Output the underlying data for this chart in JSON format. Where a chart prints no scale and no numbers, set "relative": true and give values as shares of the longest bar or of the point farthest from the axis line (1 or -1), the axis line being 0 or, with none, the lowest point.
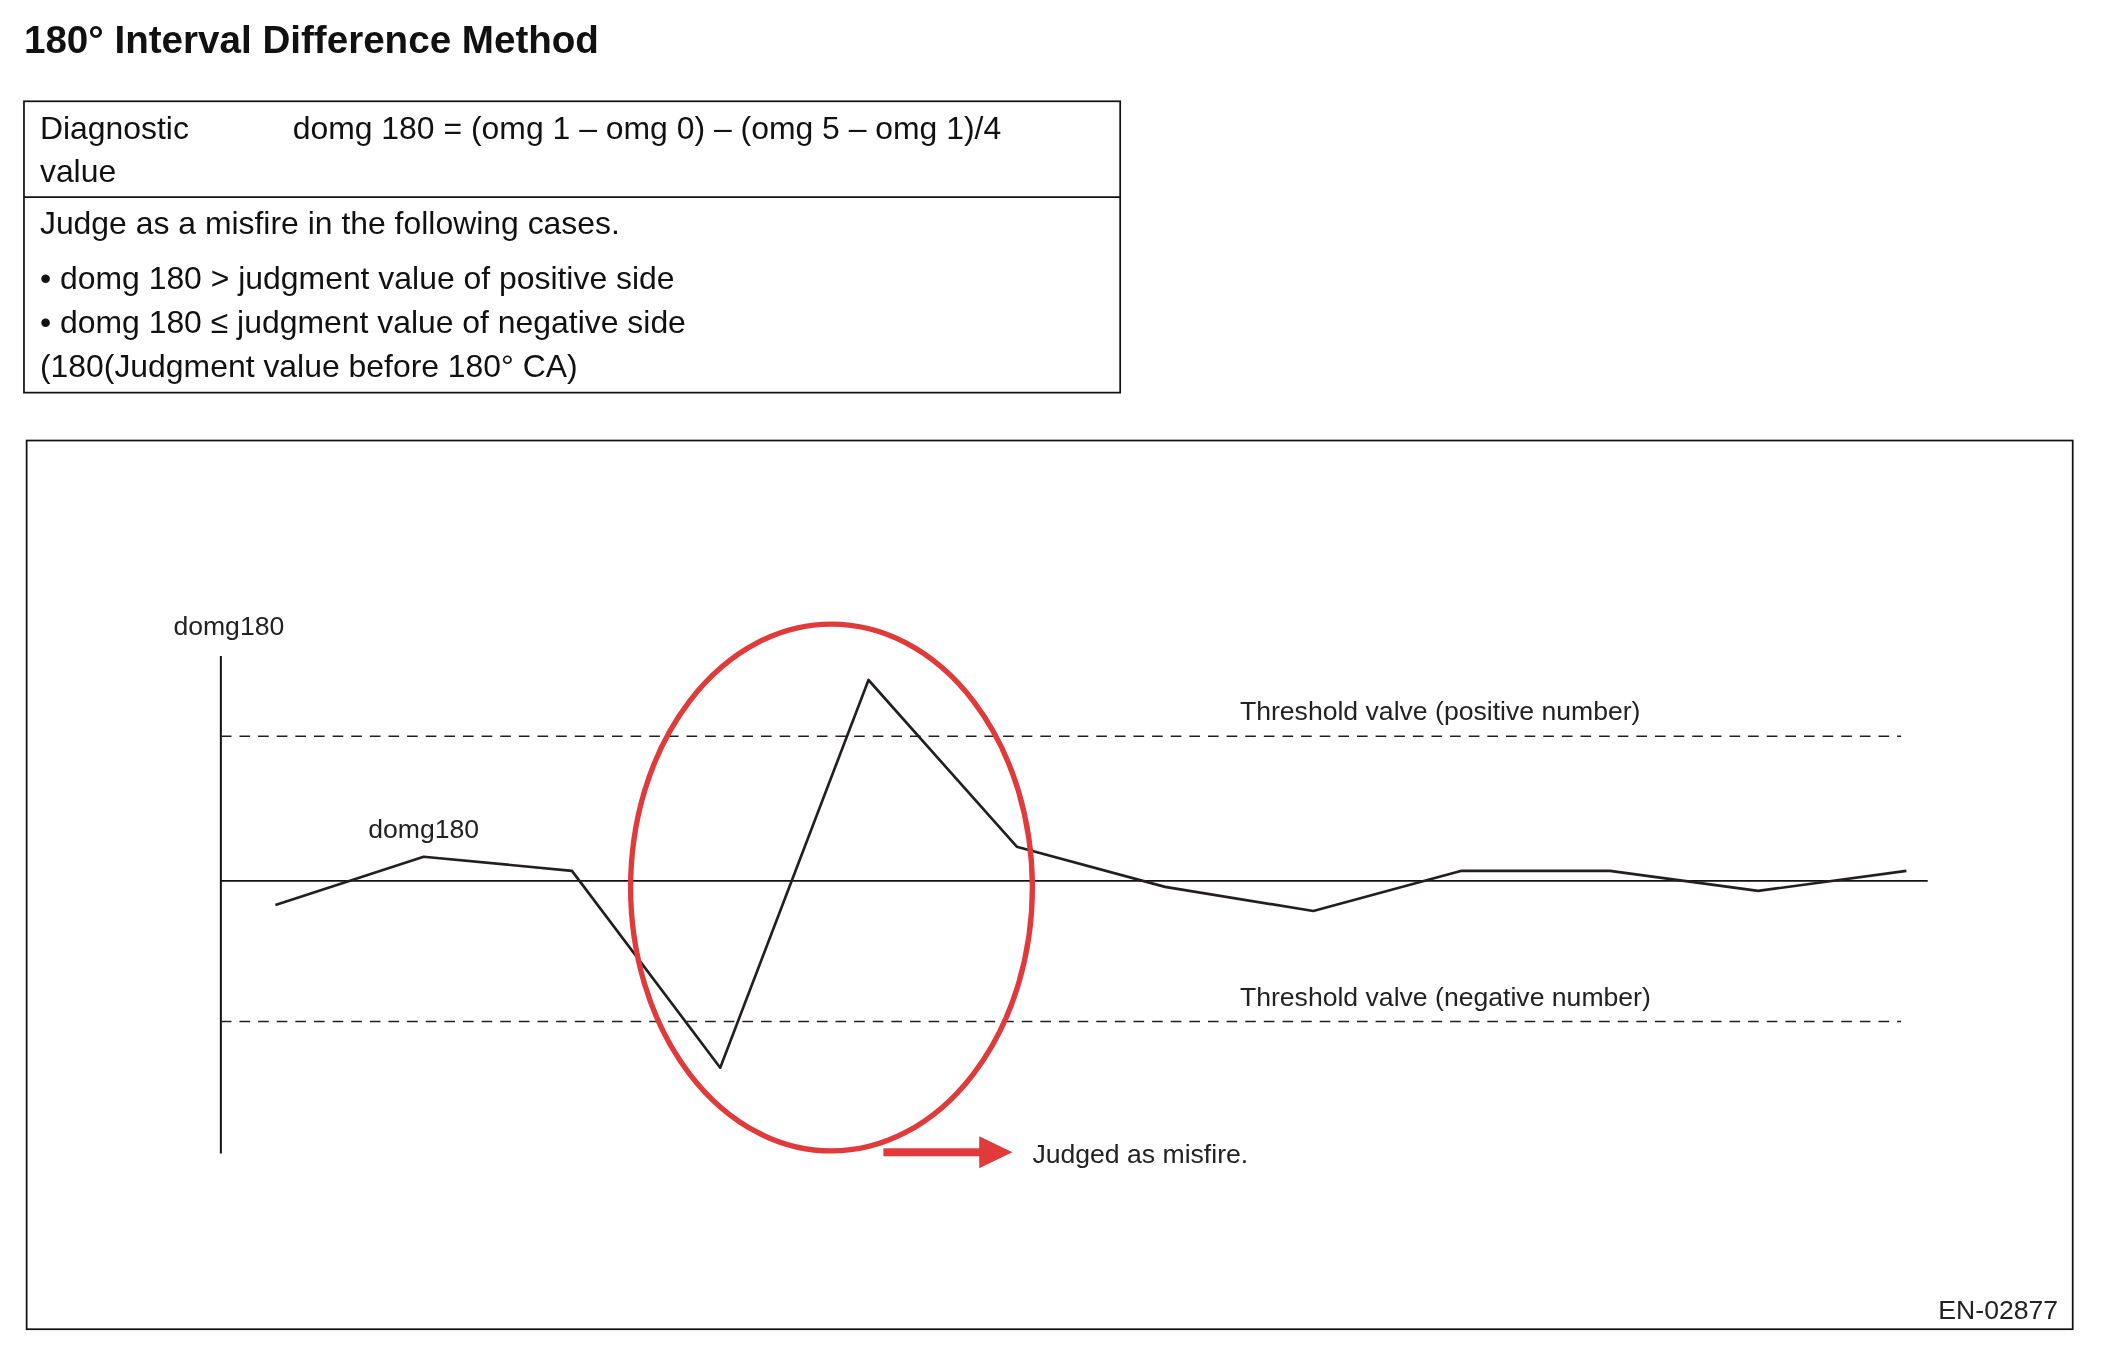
{
  "chart_data": {
    "type": "line",
    "title": "180° Interval Difference Method",
    "ylabel": "domg180",
    "relative": true,
    "legend": false,
    "categories": [
      null,
      null,
      null,
      null,
      null,
      null,
      null,
      null,
      null,
      null,
      null,
      null
    ],
    "series": [
      {
        "name": "domg180",
        "color": "#231f20",
        "values": [
          -0.12,
          0.12,
          0.05,
          -0.93,
          1,
          0.17,
          -0.03,
          -0.15,
          0.05,
          0.05,
          -0.05,
          0.05
        ]
      }
    ],
    "ref_lines": [
      {
        "axis": "y",
        "value": 0.72,
        "label": "Threshold valve (positive number)",
        "line_style": "dashed",
        "color": "#231f20"
      },
      {
        "axis": "y",
        "value": -0.7,
        "label": "Threshold valve (negative number)",
        "line_style": "dashed",
        "color": "#231f20"
      }
    ],
    "annotations": [
      "Diagnostic value",
      "domg 180 = (omg 1 – omg 0) – (omg 5 – omg 1)/4",
      "Judge as a misfire in the following cases.",
      "• domg 180 > judgment value of positive side",
      "• domg 180 ≤ judgment value of negative side",
      "(180(Judgment value before 180° CA)",
      "Judged as misfire.",
      "EN-02877"
    ]
  }
}
